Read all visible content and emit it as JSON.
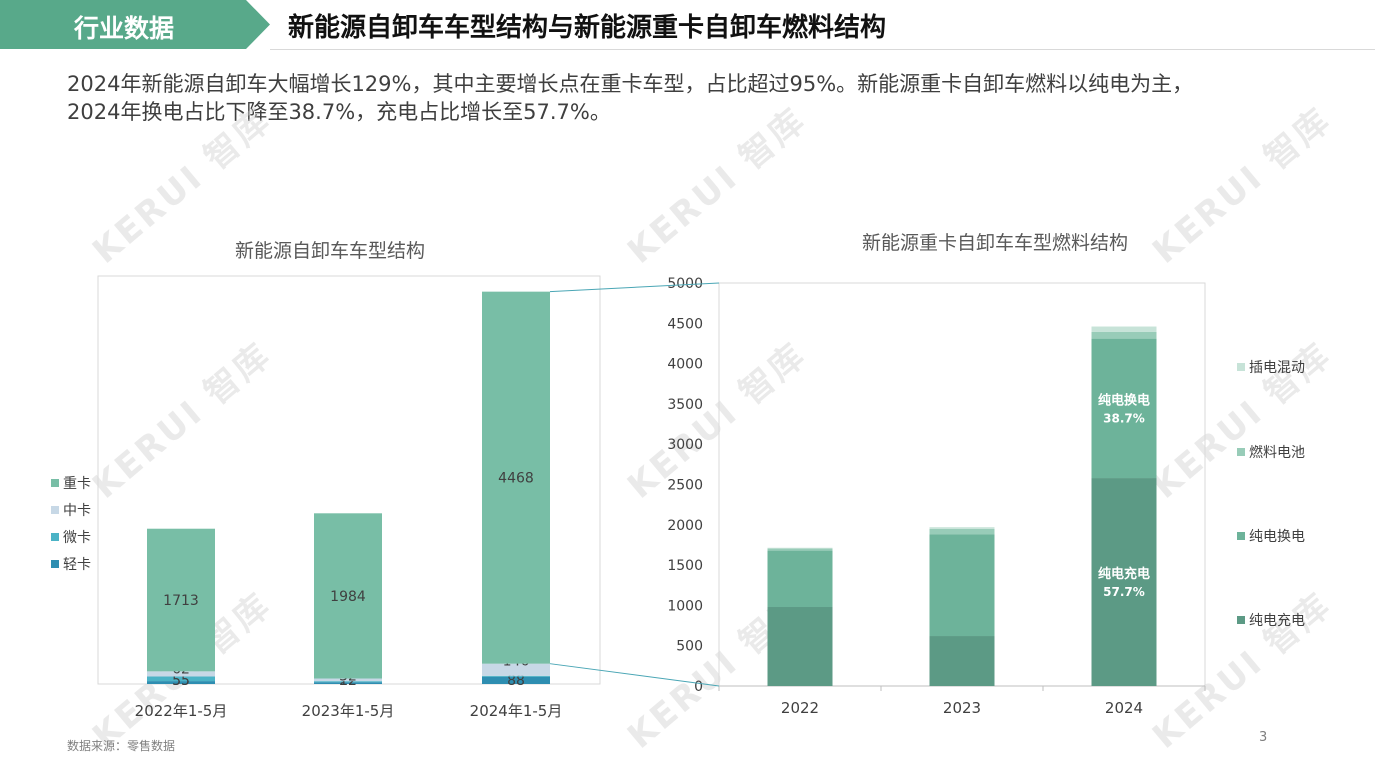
{
  "header": {
    "section_label": "行业数据",
    "title": "新能源自卸车车型结构与新能源重卡自卸车燃料结构"
  },
  "summary": {
    "line1": "2024年新能源自卸车大幅增长129%，其中主要增长点在重卡车型，占比超过95%。新能源重卡自卸车燃料以纯电为主，",
    "line2": "2024年换电占比下降至38.7%，充电占比增长至57.7%。"
  },
  "footer": {
    "source": "数据来源：零售数据",
    "page_number": "3"
  },
  "watermark": {
    "text": "KERUI 智库",
    "color": "#cccccc"
  },
  "colors": {
    "section_tag": "#58a98a",
    "connector": "#4aa6b5"
  },
  "chart_data": [
    {
      "type": "bar",
      "stacked": true,
      "title": "新能源自卸车车型结构",
      "categories": [
        "2022年1-5月",
        "2023年1-5月",
        "2024年1-5月"
      ],
      "ylim": [
        0,
        4900
      ],
      "legend_position": "left",
      "grid": false,
      "series": [
        {
          "name": "轻卡",
          "color": "#2e8eb1",
          "values": [
            35,
            22,
            88
          ],
          "labels": [
            "35",
            "22",
            "88"
          ]
        },
        {
          "name": "微卡",
          "color": "#4bb3c6",
          "values": [
            55,
            12,
            10
          ],
          "labels": [
            "55",
            "12",
            ""
          ]
        },
        {
          "name": "中卡",
          "color": "#c7d8e6",
          "values": [
            62,
            32,
            146
          ],
          "labels": [
            "62",
            "32",
            "146"
          ]
        },
        {
          "name": "重卡",
          "color": "#78bea6",
          "values": [
            1713,
            1984,
            4468
          ],
          "labels": [
            "1713",
            "1984",
            "4468"
          ]
        }
      ]
    },
    {
      "type": "bar",
      "stacked": true,
      "title": "新能源重卡自卸车车型燃料结构",
      "categories": [
        "2022",
        "2023",
        "2024"
      ],
      "ylim": [
        0,
        5000
      ],
      "yticks": [
        0,
        500,
        1000,
        1500,
        2000,
        2500,
        3000,
        3500,
        4000,
        4500,
        5000
      ],
      "legend_position": "right",
      "grid": false,
      "series": [
        {
          "name": "纯电充电",
          "color": "#5c9a85",
          "values": [
            980,
            620,
            2580
          ]
        },
        {
          "name": "纯电换电",
          "color": "#6db39a",
          "values": [
            700,
            1260,
            1730
          ]
        },
        {
          "name": "燃料电池",
          "color": "#98ccb8",
          "values": [
            25,
            70,
            85
          ]
        },
        {
          "name": "插电混动",
          "color": "#c7e3d8",
          "values": [
            10,
            20,
            65
          ]
        }
      ],
      "annotations": [
        {
          "category": "2024",
          "series": "纯电换电",
          "label": "纯电换电",
          "value": "38.7%"
        },
        {
          "category": "2024",
          "series": "纯电充电",
          "label": "纯电充电",
          "value": "57.7%"
        }
      ]
    }
  ]
}
